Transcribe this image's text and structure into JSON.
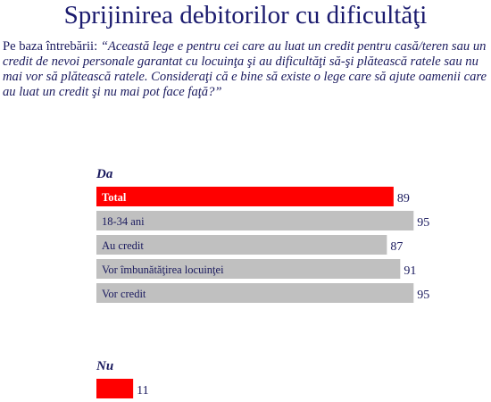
{
  "title": "Sprijinirea debitorilor cu dificultăţi",
  "question": {
    "prefix": "Pe baza întrebării: ",
    "text": "“Această lege e pentru cei care au luat un credit pentru casă/teren sau un credit de nevoi personale garantat cu locuinţa şi au dificultăţi să-şi plătească ratele sau nu mai vor să plătească ratele. Consideraţi că e bine să existe o lege care să ajute oamenii care au luat un credit şi nu mai pot face faţă?”"
  },
  "colors": {
    "text": "#1a1a5e",
    "highlight": "#ff0000",
    "bar": "#c0c0c0",
    "separator": "#ffffff"
  },
  "chart_data": {
    "type": "bar",
    "orientation": "horizontal",
    "groups": [
      {
        "label": "Da",
        "categories": [
          "Total",
          "18-34 ani",
          "Au credit",
          "Vor îmbunătăţirea locuinţei",
          "Vor credit"
        ],
        "values": [
          89,
          95,
          87,
          91,
          95
        ],
        "highlight": [
          true,
          false,
          false,
          false,
          false
        ]
      },
      {
        "label": "Nu",
        "categories": [
          ""
        ],
        "values": [
          11
        ],
        "highlight": [
          true
        ]
      }
    ],
    "xlim": [
      0,
      100
    ],
    "grid": false,
    "legend": "none"
  }
}
